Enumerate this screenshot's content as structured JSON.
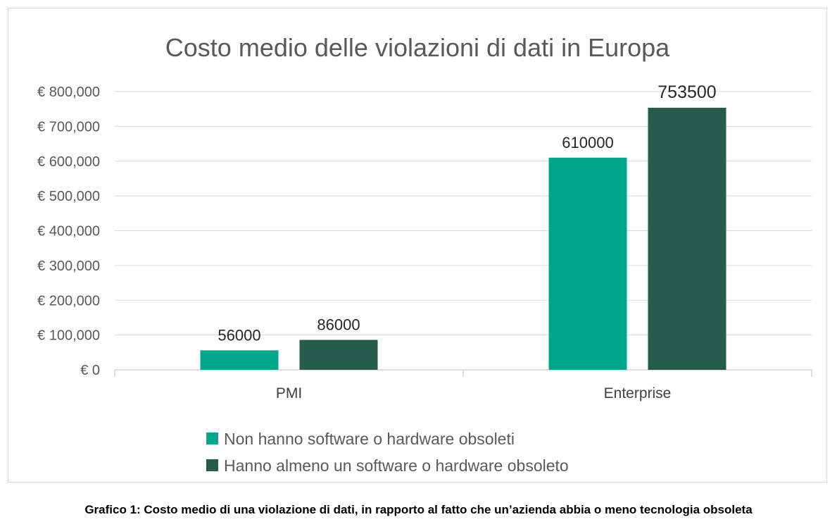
{
  "chart_data": {
    "type": "bar",
    "title": "Costo medio delle violazioni di dati in Europa",
    "categories": [
      "PMI",
      "Enterprise"
    ],
    "series": [
      {
        "name": "Non hanno software o hardware obsoleti",
        "color": "#00a88b",
        "values": [
          56000,
          610000
        ],
        "labels": [
          "56000",
          "610000"
        ]
      },
      {
        "name": "Hanno almeno un software o hardware obsoleto",
        "color": "#265c4b",
        "values": [
          86000,
          753500
        ],
        "labels": [
          "86000",
          "753500"
        ]
      }
    ],
    "yticks": [
      0,
      100000,
      200000,
      300000,
      400000,
      500000,
      600000,
      700000,
      800000
    ],
    "ytick_labels": [
      "€ 0",
      "€ 100,000",
      "€ 200,000",
      "€ 300,000",
      "€ 400,000",
      "€ 500,000",
      "€ 600,000",
      "€ 700,000",
      "€ 800,000"
    ],
    "ylim": [
      0,
      800000
    ],
    "xlabel": "",
    "ylabel": "",
    "grid": true,
    "legend_position": "bottom"
  },
  "caption": "Grafico 1: Costo medio di una violazione di dati, in rapporto al fatto che un’azienda abbia o meno tecnologia obsoleta"
}
